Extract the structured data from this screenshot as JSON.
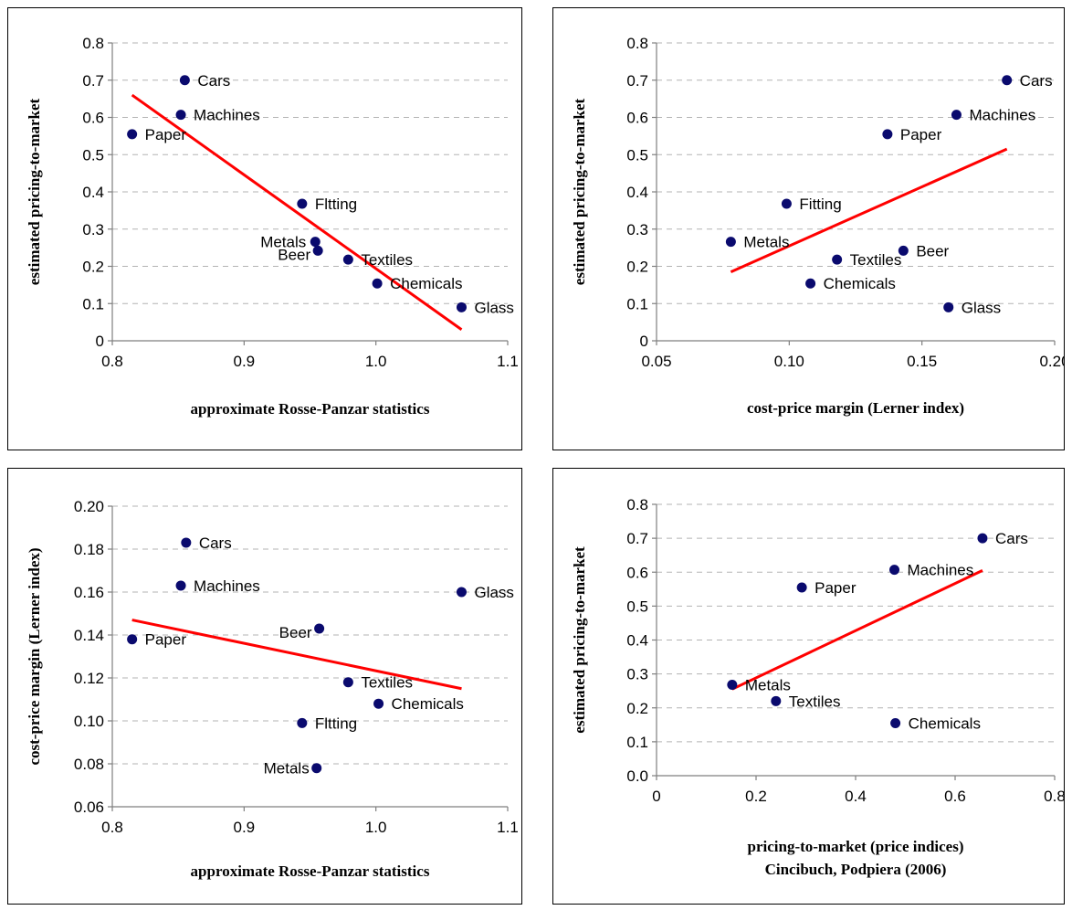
{
  "charts": [
    {
      "type": "scatter",
      "xlabel": [
        "approximate Rosse-Panzar statistics"
      ],
      "ylabel": "estimated pricing-to-market",
      "xlim": [
        0.8,
        1.1
      ],
      "ylim": [
        0,
        0.8
      ],
      "xticks": [
        "0.8",
        "0.9",
        "1.0",
        "1.1"
      ],
      "yticks": [
        "0",
        "0.1",
        "0.2",
        "0.3",
        "0.4",
        "0.5",
        "0.6",
        "0.7",
        "0.8"
      ],
      "grid": "horizontal dashed",
      "marker_color": "#0a0a6e",
      "trend_color": "#ff0000",
      "points": [
        {
          "label": "Cars",
          "x": 0.855,
          "y": 0.7
        },
        {
          "label": "Machines",
          "x": 0.852,
          "y": 0.607
        },
        {
          "label": "Paper",
          "x": 0.815,
          "y": 0.555
        },
        {
          "label": "Fltting",
          "x": 0.944,
          "y": 0.368
        },
        {
          "label": "Metals",
          "x": 0.954,
          "y": 0.266
        },
        {
          "label": "Beer",
          "x": 0.956,
          "y": 0.242
        },
        {
          "label": "Textiles",
          "x": 0.979,
          "y": 0.218
        },
        {
          "label": "Chemicals",
          "x": 1.001,
          "y": 0.154
        },
        {
          "label": "Glass",
          "x": 1.065,
          "y": 0.09
        }
      ],
      "trend": {
        "x1": 0.815,
        "y1": 0.66,
        "x2": 1.065,
        "y2": 0.03
      }
    },
    {
      "type": "scatter",
      "xlabel": [
        "cost-price margin (Lerner index)"
      ],
      "ylabel": "estimated pricing-to-market",
      "xlim": [
        0.05,
        0.2
      ],
      "ylim": [
        0,
        0.8
      ],
      "xticks": [
        "0.05",
        "0.10",
        "0.15",
        "0.20"
      ],
      "yticks": [
        "0",
        "0.1",
        "0.2",
        "0.3",
        "0.4",
        "0.5",
        "0.6",
        "0.7",
        "0.8"
      ],
      "grid": "horizontal dashed",
      "marker_color": "#0a0a6e",
      "trend_color": "#ff0000",
      "points": [
        {
          "label": "Cars",
          "x": 0.182,
          "y": 0.7
        },
        {
          "label": "Machines",
          "x": 0.163,
          "y": 0.607
        },
        {
          "label": "Paper",
          "x": 0.137,
          "y": 0.555
        },
        {
          "label": "Fitting",
          "x": 0.099,
          "y": 0.368
        },
        {
          "label": "Metals",
          "x": 0.078,
          "y": 0.266
        },
        {
          "label": "Textiles",
          "x": 0.118,
          "y": 0.218
        },
        {
          "label": "Beer",
          "x": 0.143,
          "y": 0.242
        },
        {
          "label": "Chemicals",
          "x": 0.108,
          "y": 0.154
        },
        {
          "label": "Glass",
          "x": 0.16,
          "y": 0.09
        }
      ],
      "trend": {
        "x1": 0.078,
        "y1": 0.185,
        "x2": 0.182,
        "y2": 0.515
      }
    },
    {
      "type": "scatter",
      "xlabel": [
        "approximate Rosse-Panzar statistics"
      ],
      "ylabel": "cost-price margin (Lerner index)",
      "xlim": [
        0.8,
        1.1
      ],
      "ylim": [
        0.06,
        0.2
      ],
      "xticks": [
        "0.8",
        "0.9",
        "1.0",
        "1.1"
      ],
      "yticks": [
        "0.06",
        "0.08",
        "0.10",
        "0.12",
        "0.14",
        "0.16",
        "0.18",
        "0.20"
      ],
      "grid": "horizontal dashed",
      "marker_color": "#0a0a6e",
      "trend_color": "#ff0000",
      "points": [
        {
          "label": "Cars",
          "x": 0.856,
          "y": 0.183
        },
        {
          "label": "Machines",
          "x": 0.852,
          "y": 0.163
        },
        {
          "label": "Glass",
          "x": 1.065,
          "y": 0.16
        },
        {
          "label": "Beer",
          "x": 0.957,
          "y": 0.143
        },
        {
          "label": "Paper",
          "x": 0.815,
          "y": 0.138
        },
        {
          "label": "Textiles",
          "x": 0.979,
          "y": 0.118
        },
        {
          "label": "Chemicals",
          "x": 1.002,
          "y": 0.108
        },
        {
          "label": "Fltting",
          "x": 0.944,
          "y": 0.099
        },
        {
          "label": "Metals",
          "x": 0.955,
          "y": 0.078
        }
      ],
      "trend": {
        "x1": 0.815,
        "y1": 0.147,
        "x2": 1.065,
        "y2": 0.115
      }
    },
    {
      "type": "scatter",
      "xlabel": [
        "pricing-to-market (price indices)",
        "Cincibuch, Podpiera (2006)"
      ],
      "ylabel": "estimated pricing-to-market",
      "xlim": [
        0,
        0.8
      ],
      "ylim": [
        0,
        0.8
      ],
      "xticks": [
        "0",
        "0.2",
        "0.4",
        "0.6",
        "0.8"
      ],
      "yticks": [
        "0.0",
        "0.1",
        "0.2",
        "0.3",
        "0.4",
        "0.5",
        "0.6",
        "0.7",
        "0.8"
      ],
      "grid": "horizontal dashed",
      "marker_color": "#0a0a6e",
      "trend_color": "#ff0000",
      "points": [
        {
          "label": "Cars",
          "x": 0.655,
          "y": 0.7
        },
        {
          "label": "Machines",
          "x": 0.478,
          "y": 0.607
        },
        {
          "label": "Paper",
          "x": 0.292,
          "y": 0.555
        },
        {
          "label": "Metals",
          "x": 0.152,
          "y": 0.268
        },
        {
          "label": "Textiles",
          "x": 0.24,
          "y": 0.22
        },
        {
          "label": "Chemicals",
          "x": 0.48,
          "y": 0.155
        }
      ],
      "trend": {
        "x1": 0.152,
        "y1": 0.255,
        "x2": 0.655,
        "y2": 0.605
      }
    }
  ]
}
